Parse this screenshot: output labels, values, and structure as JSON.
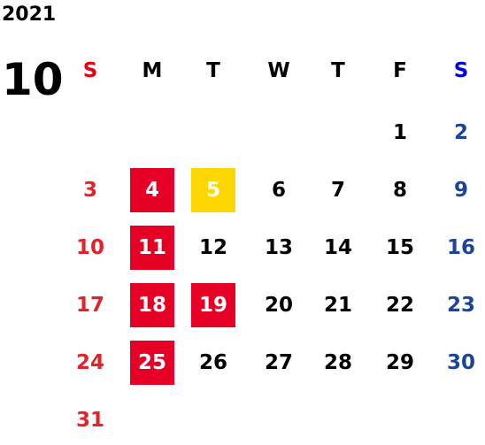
{
  "year": "2021",
  "month": "10",
  "weekdays": [
    "S",
    "M",
    "T",
    "W",
    "T",
    "F",
    "S"
  ],
  "weekday_colors": [
    "#e60012",
    "#000000",
    "#000000",
    "#000000",
    "#000000",
    "#000000",
    "#0000e6"
  ],
  "day_colors": [
    "#e2232a",
    "#000000",
    "#000000",
    "#000000",
    "#000000",
    "#000000",
    "#1d4596"
  ],
  "weeks": [
    [
      null,
      null,
      null,
      null,
      null,
      "1",
      "2"
    ],
    [
      "3",
      {
        "text": "4",
        "fill": "#e60026"
      },
      {
        "text": "5",
        "fill": "#ffd700"
      },
      "6",
      "7",
      "8",
      "9"
    ],
    [
      "10",
      {
        "text": "11",
        "fill": "#e60026"
      },
      "12",
      "13",
      "14",
      "15",
      "16"
    ],
    [
      "17",
      {
        "text": "18",
        "fill": "#e60026"
      },
      {
        "text": "19",
        "fill": "#e60026"
      },
      "20",
      "21",
      "22",
      "23"
    ],
    [
      "24",
      {
        "text": "25",
        "fill": "#e60026"
      },
      "26",
      "27",
      "28",
      "29",
      "30"
    ],
    [
      "31",
      null,
      null,
      null,
      null,
      null,
      null
    ]
  ]
}
